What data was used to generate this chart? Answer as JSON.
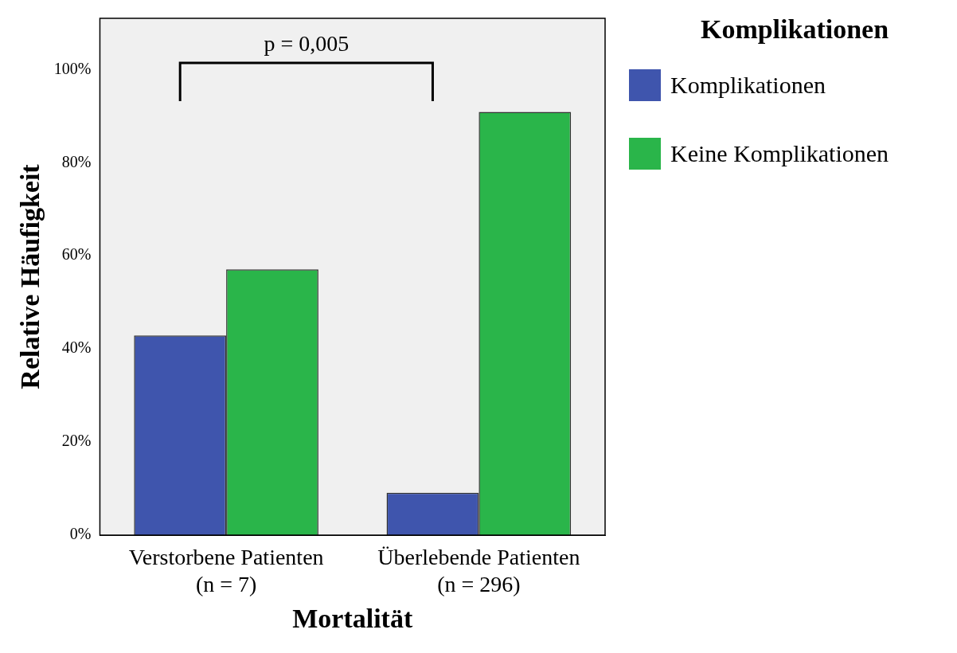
{
  "chart_data": {
    "type": "bar",
    "xlabel": "Mortalität",
    "ylabel": "Relative Häufigkeit",
    "legend_title": "Komplikationen",
    "categories": [
      "Verstorbene Patienten\n(n = 7)",
      "Überlebende Patienten\n(n = 296)"
    ],
    "series": [
      {
        "name": "Komplikationen",
        "color": "#3f55ad",
        "values": [
          42.9,
          9.1
        ]
      },
      {
        "name": "Keine Komplikationen",
        "color": "#2ab54a",
        "values": [
          57.1,
          90.9
        ]
      }
    ],
    "ylim": [
      0,
      111
    ],
    "yticks": [
      {
        "value": 0,
        "label": "0%"
      },
      {
        "value": 20,
        "label": "20%"
      },
      {
        "value": 40,
        "label": "40%"
      },
      {
        "value": 60,
        "label": "60%"
      },
      {
        "value": 80,
        "label": "80%"
      },
      {
        "value": 100,
        "label": "100%"
      }
    ],
    "grid": false,
    "legend": "right",
    "annotations": [
      "p = 0,005"
    ]
  }
}
